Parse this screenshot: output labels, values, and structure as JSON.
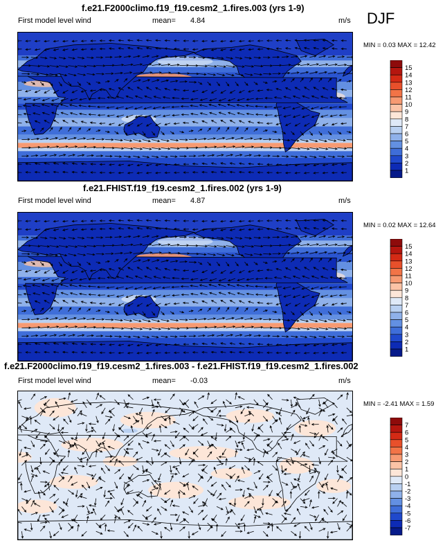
{
  "season": "DJF",
  "panels": [
    {
      "title": "f.e21.F2000climo.f19_f19.cesm2_1.fires.003 (yrs 1-9)",
      "subtitle": "First model level wind",
      "mean_label": "mean=",
      "mean_value": "4.84",
      "units": "m/s",
      "minmax": "MIN =  0.03 MAX =  12.42"
    },
    {
      "title": "f.e21.FHIST.f19_f19.cesm2_1.fires.002 (yrs 1-9)",
      "subtitle": "First model level wind",
      "mean_label": "mean=",
      "mean_value": "4.87",
      "units": "m/s",
      "minmax": "MIN =  0.02 MAX =  12.64"
    },
    {
      "title": "f.e21.F2000climo.f19_f19.cesm2_1.fires.003 - f.e21.FHIST.f19_f19.cesm2_1.fires.002",
      "subtitle": "First model level wind",
      "mean_label": "mean=",
      "mean_value": "-0.03",
      "units": "m/s",
      "minmax": "MIN = -2.41 MAX =   1.59"
    }
  ],
  "chart_data": [
    {
      "type": "heatmap",
      "title": "f.e21.F2000climo.f19_f19.cesm2_1.fires.003 (yrs 1-9)",
      "variable": "First model level wind",
      "units": "m/s",
      "mean": 4.84,
      "min": 0.03,
      "max": 12.42,
      "colorbar_levels": [
        "15",
        "14",
        "13",
        "12",
        "11",
        "10",
        "9",
        "8",
        "7",
        "6",
        "5",
        "4",
        "3",
        "2",
        "1"
      ],
      "colorbar_colors": [
        "#8e0b0b",
        "#b5160f",
        "#d42a15",
        "#e8502b",
        "#f27447",
        "#f79a72",
        "#fbc3a6",
        "#fde6d8",
        "#dfe9f7",
        "#b9d0f1",
        "#8fb1ea",
        "#6390e2",
        "#3f6ed9",
        "#2049cc",
        "#0d2bb5",
        "#061a8a"
      ],
      "overlay": "wind vectors",
      "region": "global"
    },
    {
      "type": "heatmap",
      "title": "f.e21.FHIST.f19_f19.cesm2_1.fires.002 (yrs 1-9)",
      "variable": "First model level wind",
      "units": "m/s",
      "mean": 4.87,
      "min": 0.02,
      "max": 12.64,
      "colorbar_levels": [
        "15",
        "14",
        "13",
        "12",
        "11",
        "10",
        "9",
        "8",
        "7",
        "6",
        "5",
        "4",
        "3",
        "2",
        "1"
      ],
      "colorbar_colors": [
        "#8e0b0b",
        "#b5160f",
        "#d42a15",
        "#e8502b",
        "#f27447",
        "#f79a72",
        "#fbc3a6",
        "#fde6d8",
        "#dfe9f7",
        "#b9d0f1",
        "#8fb1ea",
        "#6390e2",
        "#3f6ed9",
        "#2049cc",
        "#0d2bb5",
        "#061a8a"
      ],
      "overlay": "wind vectors",
      "region": "global"
    },
    {
      "type": "heatmap",
      "title": "f.e21.F2000climo.f19_f19.cesm2_1.fires.003 - f.e21.FHIST.f19_f19.cesm2_1.fires.002",
      "variable": "First model level wind",
      "units": "m/s",
      "mean": -0.03,
      "min": -2.41,
      "max": 1.59,
      "colorbar_levels": [
        "7",
        "6",
        "5",
        "4",
        "3",
        "2",
        "1",
        "0",
        "-1",
        "-2",
        "-3",
        "-4",
        "-5",
        "-6",
        "-7"
      ],
      "colorbar_colors": [
        "#8e0b0b",
        "#b5160f",
        "#d42a15",
        "#e8502b",
        "#f27447",
        "#f79a72",
        "#fbc3a6",
        "#fde6d8",
        "#dfe9f7",
        "#b9d0f1",
        "#8fb1ea",
        "#6390e2",
        "#3f6ed9",
        "#2049cc",
        "#0d2bb5",
        "#061a8a"
      ],
      "overlay": "wind vector differences",
      "region": "global"
    }
  ]
}
